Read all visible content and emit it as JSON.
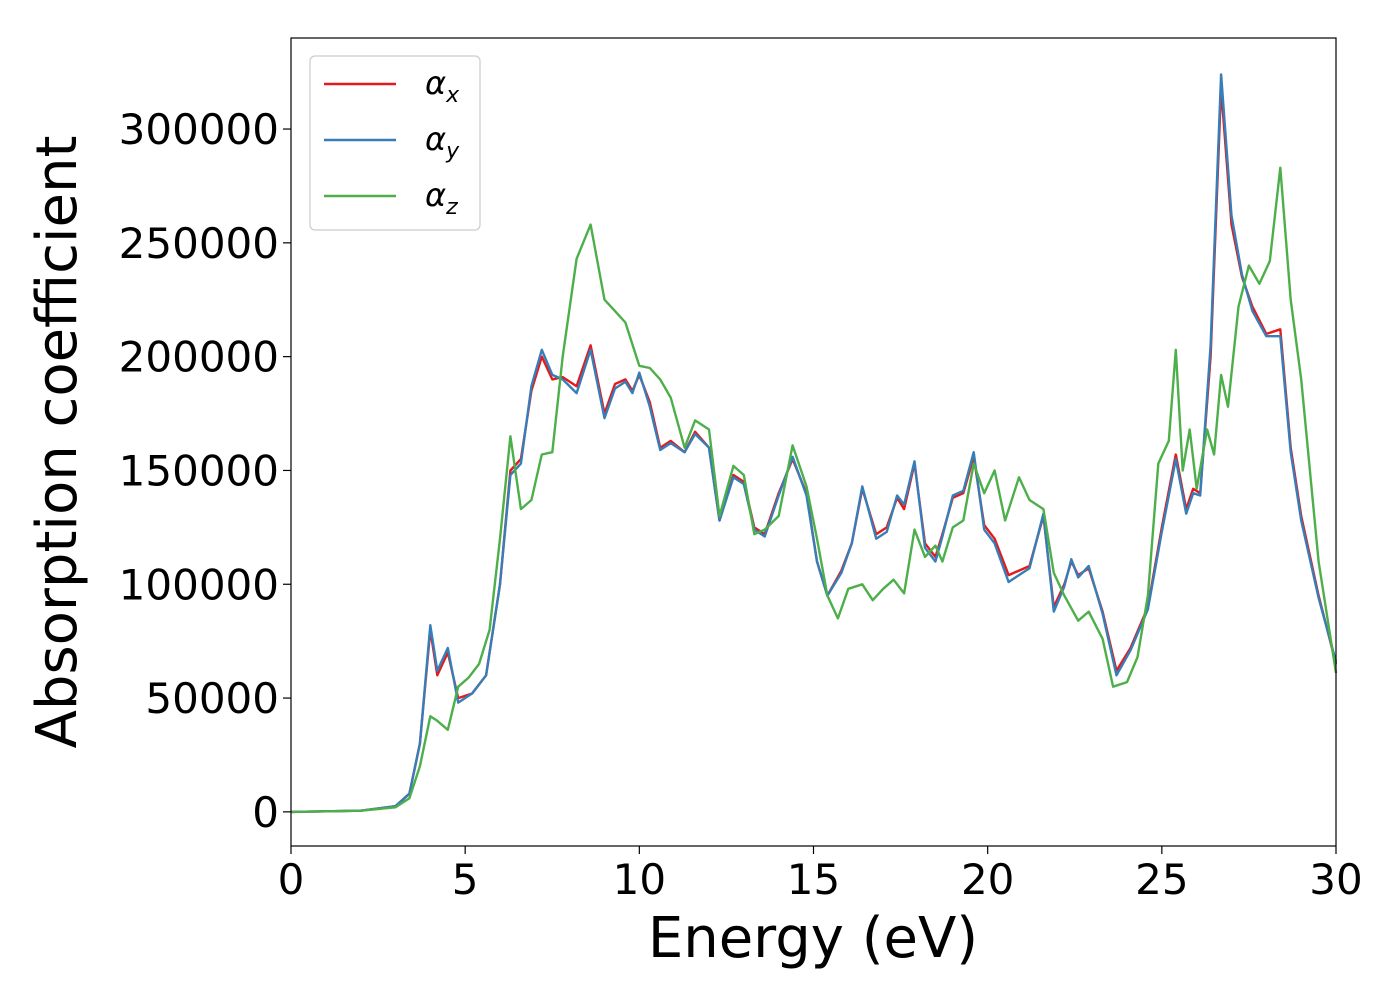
{
  "chart_data": {
    "type": "line",
    "title": "",
    "xlabel": "Energy (eV)",
    "ylabel": "Absorption coefficient",
    "xlim": [
      0,
      30
    ],
    "ylim": [
      -15000,
      340000
    ],
    "x_ticks": [
      0,
      5,
      10,
      15,
      20,
      25,
      30
    ],
    "y_ticks": [
      0,
      50000,
      100000,
      150000,
      200000,
      250000,
      300000
    ],
    "grid": false,
    "legend_position": "upper-left",
    "series": [
      {
        "name": "α",
        "name_subscript": "x",
        "color": "#e41a1c",
        "points": [
          [
            0,
            0
          ],
          [
            2,
            500
          ],
          [
            3,
            2500
          ],
          [
            3.4,
            8000
          ],
          [
            3.7,
            30000
          ],
          [
            4.0,
            80000
          ],
          [
            4.2,
            60000
          ],
          [
            4.5,
            70000
          ],
          [
            4.8,
            50000
          ],
          [
            5.2,
            52000
          ],
          [
            5.6,
            60000
          ],
          [
            6.0,
            100000
          ],
          [
            6.3,
            150000
          ],
          [
            6.6,
            155000
          ],
          [
            6.9,
            185000
          ],
          [
            7.2,
            200000
          ],
          [
            7.5,
            190000
          ],
          [
            7.8,
            191000
          ],
          [
            8.2,
            187000
          ],
          [
            8.6,
            205000
          ],
          [
            9.0,
            175000
          ],
          [
            9.3,
            188000
          ],
          [
            9.6,
            190000
          ],
          [
            9.8,
            185000
          ],
          [
            10.0,
            192000
          ],
          [
            10.3,
            180000
          ],
          [
            10.6,
            160000
          ],
          [
            10.9,
            163000
          ],
          [
            11.3,
            158000
          ],
          [
            11.6,
            167000
          ],
          [
            12.0,
            160000
          ],
          [
            12.3,
            128000
          ],
          [
            12.7,
            148000
          ],
          [
            13.0,
            145000
          ],
          [
            13.3,
            125000
          ],
          [
            13.6,
            122000
          ],
          [
            14.0,
            140000
          ],
          [
            14.4,
            155000
          ],
          [
            14.8,
            140000
          ],
          [
            15.1,
            110000
          ],
          [
            15.4,
            95000
          ],
          [
            15.8,
            106000
          ],
          [
            16.1,
            118000
          ],
          [
            16.4,
            142000
          ],
          [
            16.8,
            122000
          ],
          [
            17.1,
            125000
          ],
          [
            17.4,
            138000
          ],
          [
            17.6,
            133000
          ],
          [
            17.9,
            153000
          ],
          [
            18.2,
            118000
          ],
          [
            18.5,
            112000
          ],
          [
            18.7,
            122000
          ],
          [
            19.0,
            138000
          ],
          [
            19.3,
            140000
          ],
          [
            19.6,
            156000
          ],
          [
            19.9,
            126000
          ],
          [
            20.2,
            120000
          ],
          [
            20.6,
            104000
          ],
          [
            20.9,
            106000
          ],
          [
            21.2,
            108000
          ],
          [
            21.6,
            130000
          ],
          [
            21.9,
            90000
          ],
          [
            22.2,
            100000
          ],
          [
            22.4,
            110000
          ],
          [
            22.6,
            104000
          ],
          [
            22.9,
            107000
          ],
          [
            23.3,
            88000
          ],
          [
            23.7,
            62000
          ],
          [
            24.1,
            72000
          ],
          [
            24.6,
            90000
          ],
          [
            25.0,
            125000
          ],
          [
            25.4,
            157000
          ],
          [
            25.7,
            133000
          ],
          [
            25.9,
            142000
          ],
          [
            26.1,
            140000
          ],
          [
            26.4,
            200000
          ],
          [
            26.7,
            318000
          ],
          [
            27.0,
            258000
          ],
          [
            27.3,
            235000
          ],
          [
            27.6,
            222000
          ],
          [
            28.0,
            210000
          ],
          [
            28.4,
            212000
          ],
          [
            28.7,
            160000
          ],
          [
            29.0,
            130000
          ],
          [
            29.5,
            95000
          ],
          [
            30,
            65000
          ]
        ]
      },
      {
        "name": "α",
        "name_subscript": "y",
        "color": "#377eb8",
        "points": [
          [
            0,
            0
          ],
          [
            2,
            500
          ],
          [
            3,
            2500
          ],
          [
            3.4,
            8000
          ],
          [
            3.7,
            30000
          ],
          [
            4.0,
            82000
          ],
          [
            4.2,
            62000
          ],
          [
            4.5,
            72000
          ],
          [
            4.8,
            48000
          ],
          [
            5.2,
            52000
          ],
          [
            5.6,
            60000
          ],
          [
            6.0,
            100000
          ],
          [
            6.3,
            148000
          ],
          [
            6.6,
            153000
          ],
          [
            6.9,
            187000
          ],
          [
            7.2,
            203000
          ],
          [
            7.5,
            192000
          ],
          [
            7.8,
            190000
          ],
          [
            8.2,
            184000
          ],
          [
            8.6,
            203000
          ],
          [
            9.0,
            173000
          ],
          [
            9.3,
            186000
          ],
          [
            9.6,
            189000
          ],
          [
            9.8,
            184000
          ],
          [
            10.0,
            193000
          ],
          [
            10.3,
            178000
          ],
          [
            10.6,
            159000
          ],
          [
            10.9,
            162000
          ],
          [
            11.3,
            158000
          ],
          [
            11.6,
            166000
          ],
          [
            12.0,
            160000
          ],
          [
            12.3,
            128000
          ],
          [
            12.7,
            147000
          ],
          [
            13.0,
            144000
          ],
          [
            13.3,
            124000
          ],
          [
            13.6,
            121000
          ],
          [
            14.0,
            139000
          ],
          [
            14.4,
            156000
          ],
          [
            14.8,
            139000
          ],
          [
            15.1,
            110000
          ],
          [
            15.4,
            95000
          ],
          [
            15.8,
            105000
          ],
          [
            16.1,
            118000
          ],
          [
            16.4,
            143000
          ],
          [
            16.8,
            120000
          ],
          [
            17.1,
            123000
          ],
          [
            17.4,
            139000
          ],
          [
            17.6,
            135000
          ],
          [
            17.9,
            154000
          ],
          [
            18.2,
            116000
          ],
          [
            18.5,
            110000
          ],
          [
            18.7,
            121000
          ],
          [
            19.0,
            139000
          ],
          [
            19.3,
            141000
          ],
          [
            19.6,
            158000
          ],
          [
            19.9,
            124000
          ],
          [
            20.2,
            118000
          ],
          [
            20.6,
            101000
          ],
          [
            20.9,
            104000
          ],
          [
            21.2,
            107000
          ],
          [
            21.6,
            131000
          ],
          [
            21.9,
            88000
          ],
          [
            22.2,
            99000
          ],
          [
            22.4,
            111000
          ],
          [
            22.6,
            103000
          ],
          [
            22.9,
            108000
          ],
          [
            23.3,
            87000
          ],
          [
            23.7,
            60000
          ],
          [
            24.1,
            71000
          ],
          [
            24.6,
            89000
          ],
          [
            25.0,
            123000
          ],
          [
            25.4,
            155000
          ],
          [
            25.7,
            131000
          ],
          [
            25.9,
            140000
          ],
          [
            26.1,
            139000
          ],
          [
            26.4,
            205000
          ],
          [
            26.7,
            324000
          ],
          [
            27.0,
            262000
          ],
          [
            27.3,
            236000
          ],
          [
            27.6,
            220000
          ],
          [
            28.0,
            209000
          ],
          [
            28.4,
            209000
          ],
          [
            28.7,
            158000
          ],
          [
            29.0,
            128000
          ],
          [
            29.5,
            94000
          ],
          [
            30,
            66000
          ]
        ]
      },
      {
        "name": "α",
        "name_subscript": "z",
        "color": "#4daf4a",
        "points": [
          [
            0,
            0
          ],
          [
            2,
            500
          ],
          [
            3,
            2000
          ],
          [
            3.4,
            6000
          ],
          [
            3.7,
            20000
          ],
          [
            4.0,
            42000
          ],
          [
            4.2,
            40000
          ],
          [
            4.5,
            36000
          ],
          [
            4.8,
            55000
          ],
          [
            5.1,
            59000
          ],
          [
            5.4,
            65000
          ],
          [
            5.7,
            80000
          ],
          [
            6.0,
            120000
          ],
          [
            6.3,
            165000
          ],
          [
            6.6,
            133000
          ],
          [
            6.9,
            137000
          ],
          [
            7.2,
            157000
          ],
          [
            7.5,
            158000
          ],
          [
            7.8,
            200000
          ],
          [
            8.2,
            243000
          ],
          [
            8.6,
            258000
          ],
          [
            9.0,
            225000
          ],
          [
            9.3,
            220000
          ],
          [
            9.6,
            215000
          ],
          [
            10.0,
            196000
          ],
          [
            10.3,
            195000
          ],
          [
            10.6,
            190000
          ],
          [
            10.9,
            182000
          ],
          [
            11.3,
            160000
          ],
          [
            11.6,
            172000
          ],
          [
            12.0,
            168000
          ],
          [
            12.3,
            130000
          ],
          [
            12.7,
            152000
          ],
          [
            13.0,
            148000
          ],
          [
            13.3,
            122000
          ],
          [
            13.6,
            124000
          ],
          [
            14.0,
            130000
          ],
          [
            14.4,
            161000
          ],
          [
            14.8,
            143000
          ],
          [
            15.1,
            120000
          ],
          [
            15.4,
            95000
          ],
          [
            15.7,
            85000
          ],
          [
            16.0,
            98000
          ],
          [
            16.4,
            100000
          ],
          [
            16.7,
            93000
          ],
          [
            17.0,
            98000
          ],
          [
            17.3,
            102000
          ],
          [
            17.6,
            96000
          ],
          [
            17.9,
            124000
          ],
          [
            18.2,
            112000
          ],
          [
            18.5,
            117000
          ],
          [
            18.7,
            110000
          ],
          [
            19.0,
            125000
          ],
          [
            19.3,
            128000
          ],
          [
            19.6,
            153000
          ],
          [
            19.9,
            140000
          ],
          [
            20.2,
            150000
          ],
          [
            20.5,
            128000
          ],
          [
            20.9,
            147000
          ],
          [
            21.2,
            137000
          ],
          [
            21.6,
            133000
          ],
          [
            21.9,
            105000
          ],
          [
            22.2,
            95000
          ],
          [
            22.6,
            84000
          ],
          [
            22.9,
            88000
          ],
          [
            23.3,
            76000
          ],
          [
            23.6,
            55000
          ],
          [
            24.0,
            57000
          ],
          [
            24.3,
            68000
          ],
          [
            24.6,
            95000
          ],
          [
            24.9,
            153000
          ],
          [
            25.2,
            163000
          ],
          [
            25.4,
            203000
          ],
          [
            25.6,
            150000
          ],
          [
            25.8,
            168000
          ],
          [
            26.0,
            142000
          ],
          [
            26.3,
            168000
          ],
          [
            26.5,
            157000
          ],
          [
            26.7,
            192000
          ],
          [
            26.9,
            178000
          ],
          [
            27.2,
            222000
          ],
          [
            27.5,
            240000
          ],
          [
            27.8,
            232000
          ],
          [
            28.1,
            242000
          ],
          [
            28.4,
            283000
          ],
          [
            28.7,
            225000
          ],
          [
            29.0,
            190000
          ],
          [
            29.5,
            110000
          ],
          [
            30,
            61000
          ]
        ]
      }
    ]
  }
}
